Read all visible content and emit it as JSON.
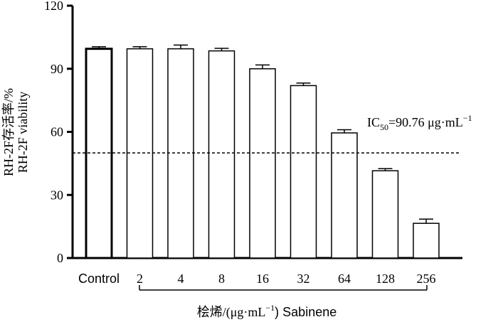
{
  "chart_data": {
    "type": "bar",
    "categories": [
      "Control",
      "2",
      "4",
      "8",
      "16",
      "32",
      "64",
      "128",
      "256"
    ],
    "values": [
      99.5,
      99.5,
      99.5,
      98.5,
      90,
      82,
      59.5,
      41.5,
      16.5
    ],
    "errors": [
      1,
      1,
      1.8,
      1.2,
      1.8,
      1.2,
      1.5,
      1,
      2
    ],
    "ylim": [
      0,
      120
    ],
    "yticks": [
      0,
      30,
      60,
      90,
      120
    ],
    "ylabel_line1": "RH-2F存活率/%",
    "ylabel_line2": "RH-2F viability",
    "xlabel_prefix": "桧烯/(μg·mL",
    "xlabel_sup": "−1",
    "xlabel_suffix": ")  Sabinene",
    "threshold": 50,
    "annotation": {
      "prefix": "IC",
      "sub": "50",
      "value": "=90.76 μg·mL",
      "sup": "−1"
    },
    "bar_fill": "#ffffff",
    "bar_stroke": "#000000",
    "legend": "none",
    "grid": false
  }
}
